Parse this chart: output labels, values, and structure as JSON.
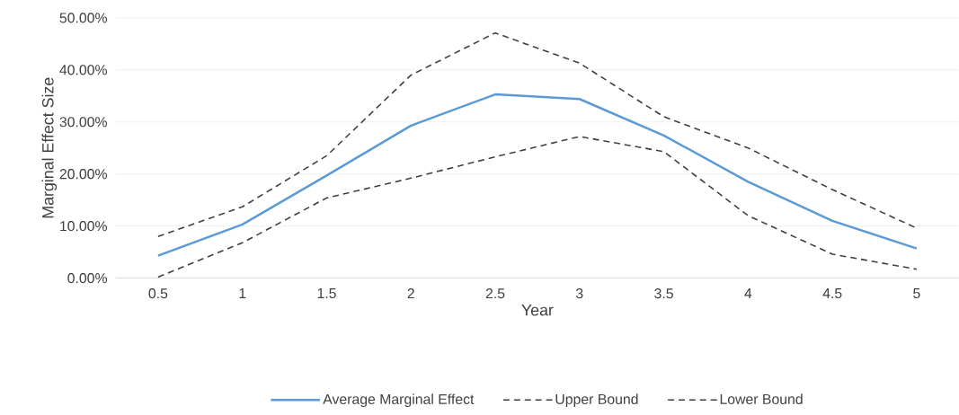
{
  "chart_data": {
    "type": "line",
    "xlabel": "Year",
    "ylabel": "Marginal Effect Size",
    "categories": [
      "0.5",
      "1",
      "1.5",
      "2",
      "2.5",
      "3",
      "3.5",
      "4",
      "4.5",
      "5"
    ],
    "series": [
      {
        "name": "Average Marginal Effect",
        "color": "#5b9bd5",
        "line_style": "solid",
        "values": [
          4.3,
          10.3,
          19.7,
          29.3,
          35.3,
          34.4,
          27.4,
          18.5,
          11.0,
          5.7
        ]
      },
      {
        "name": "Upper Bound",
        "color": "#404040",
        "line_style": "dashed",
        "values": [
          8.0,
          13.7,
          23.5,
          39.0,
          47.1,
          41.3,
          31.0,
          25.0,
          17.0,
          9.6
        ]
      },
      {
        "name": "Lower Bound",
        "color": "#404040",
        "line_style": "dashed",
        "values": [
          0.2,
          6.8,
          15.4,
          19.2,
          23.3,
          27.2,
          24.3,
          12.0,
          4.6,
          1.7
        ]
      }
    ],
    "ylim": [
      0,
      50
    ],
    "yticks": [
      {
        "value": 0,
        "label": "0.00%"
      },
      {
        "value": 10,
        "label": "10.00%"
      },
      {
        "value": 20,
        "label": "20.00%"
      },
      {
        "value": 30,
        "label": "30.00%"
      },
      {
        "value": 40,
        "label": "40.00%"
      },
      {
        "value": 50,
        "label": "50.00%"
      }
    ],
    "grid": "y",
    "legend": "bottom",
    "marker": "none"
  }
}
